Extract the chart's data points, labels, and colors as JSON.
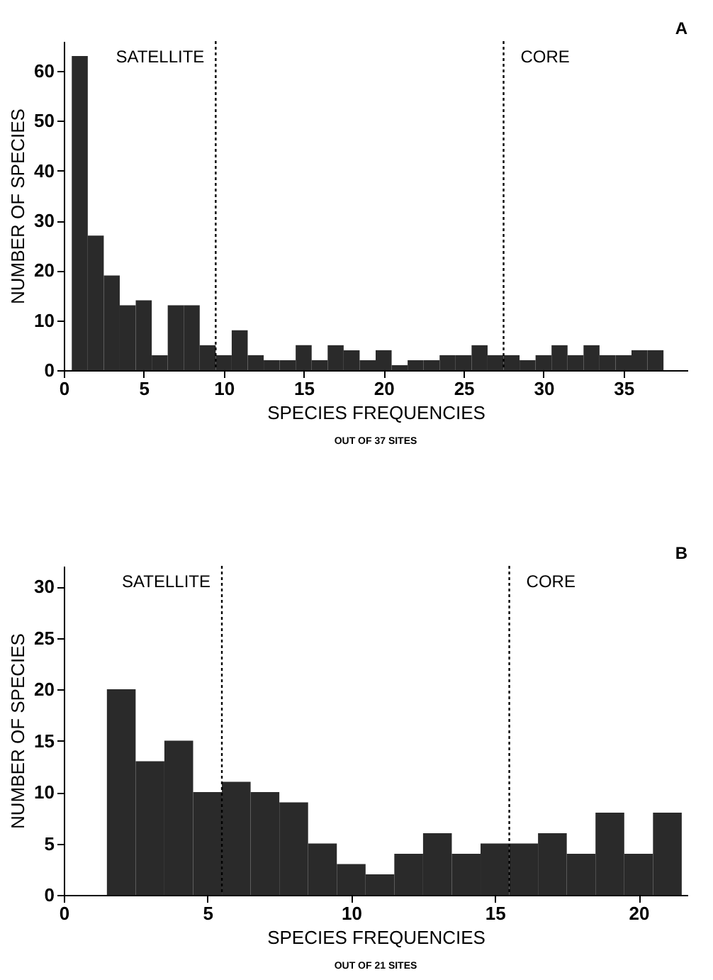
{
  "chart_data": [
    {
      "type": "histogram",
      "title": "A",
      "xlabel": "SPECIES FREQUENCIES",
      "ylabel": "NUMBER OF SPECIES",
      "color": "#2a2a2a",
      "bins": [
        0.5,
        1.5,
        2.5,
        3.5,
        4.5,
        5.5,
        6.5,
        7.5,
        8.5,
        9.5,
        10.5,
        11.5,
        12.5,
        13.5,
        14.5,
        15.5,
        16.5,
        17.5,
        18.5,
        19.5,
        20.5,
        21.5,
        22.5,
        23.5,
        24.5,
        25.5,
        26.5,
        27.5,
        28.5,
        29.5,
        30.5,
        31.5,
        32.5,
        33.5,
        34.5,
        35.5,
        36.5,
        37.5
      ],
      "values": [
        63,
        27,
        19,
        13,
        14,
        3,
        13,
        13,
        5,
        3,
        8,
        3,
        2,
        2,
        5,
        2,
        5,
        4,
        2,
        4,
        1,
        2,
        2,
        3,
        3,
        5,
        3,
        3,
        2,
        3,
        5,
        3,
        5,
        3,
        3,
        4,
        4
      ],
      "xlim": [
        0,
        39
      ],
      "xticks": [
        0,
        5,
        10,
        15,
        20,
        25,
        30,
        35
      ],
      "ylim": [
        0,
        66
      ],
      "yticks": [
        0,
        10,
        20,
        30,
        40,
        50,
        60
      ],
      "grid": false,
      "ref_lines": [
        {
          "axis": "x",
          "value": 9.5,
          "line_style": "dotted"
        },
        {
          "axis": "x",
          "value": 27.5,
          "line_style": "dotted"
        }
      ],
      "annotations": [
        "SATELLITE",
        "CORE",
        "OUT OF 37 SITES"
      ]
    },
    {
      "type": "histogram",
      "title": "B",
      "xlabel": "SPECIES FREQUENCIES",
      "ylabel": "NUMBER OF SPECIES",
      "color": "#2a2a2a",
      "bins": [
        1.5,
        2.5,
        3.5,
        4.5,
        5.5,
        6.5,
        7.5,
        8.5,
        9.5,
        10.5,
        11.5,
        12.5,
        13.5,
        14.5,
        15.5,
        16.5,
        17.5,
        18.5,
        19.5,
        20.5,
        21.5
      ],
      "values": [
        20,
        13,
        15,
        10,
        11,
        10,
        9,
        5,
        3,
        2,
        4,
        6,
        4,
        5,
        5,
        6,
        4,
        8,
        4,
        8
      ],
      "xlim": [
        0,
        21.7
      ],
      "xticks": [
        0,
        5,
        10,
        15,
        20
      ],
      "ylim": [
        0,
        32
      ],
      "yticks": [
        0,
        5,
        10,
        15,
        20,
        25,
        30
      ],
      "grid": false,
      "ref_lines": [
        {
          "axis": "x",
          "value": 5.5,
          "line_style": "dotted"
        },
        {
          "axis": "x",
          "value": 15.5,
          "line_style": "dotted"
        }
      ],
      "annotations": [
        "SATELLITE",
        "CORE",
        "OUT OF 21 SITES"
      ]
    }
  ]
}
